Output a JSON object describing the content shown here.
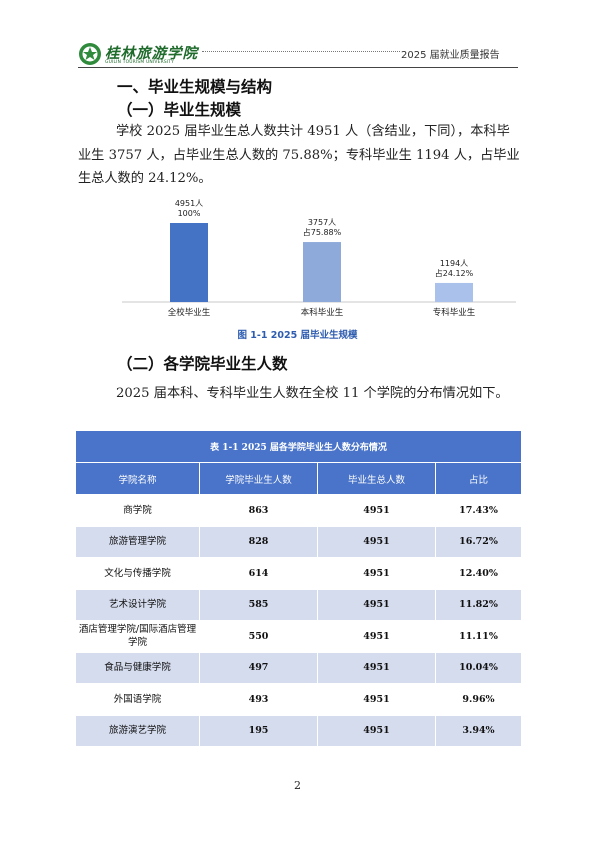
{
  "header": {
    "logo_cn": "桂林旅游学院",
    "logo_en": "GUILIN TOURISM UNIVERSITY",
    "doc_title": "2025 届就业质量报告"
  },
  "section1": {
    "heading": "一、毕业生规模与结构",
    "sub1": "（一）毕业生规模",
    "para1": "学校 2025 届毕业生总人数共计 4951 人（含结业，下同），本科毕业生 3757 人，占毕业生总人数的 75.88%；专科毕业生 1194 人，占毕业生总人数的 24.12%。"
  },
  "chart_data": {
    "type": "bar",
    "categories": [
      "全校毕业生",
      "本科毕业生",
      "专科毕业生"
    ],
    "values": [
      4951,
      3757,
      1194
    ],
    "data_labels": [
      [
        "4951人",
        "100%"
      ],
      [
        "3757人",
        "占75.88%"
      ],
      [
        "1194人",
        "占24.12%"
      ]
    ],
    "colors": [
      "#4472c4",
      "#8eaadb",
      "#a9c1eb"
    ],
    "ylim": [
      0,
      4951
    ],
    "grid": false
  },
  "chart_caption": "图 1-1     2025 届毕业生规模",
  "section2": {
    "sub2": "（二）各学院毕业生人数",
    "para2": "2025 届本科、专科毕业生人数在全校 11 个学院的分布情况如下。"
  },
  "table": {
    "caption": "表 1-1     2025 届各学院毕业生人数分布情况",
    "columns": [
      "学院名称",
      "学院毕业生人数",
      "毕业生总人数",
      "占比"
    ],
    "rows": [
      [
        "商学院",
        "863",
        "4951",
        "17.43%"
      ],
      [
        "旅游管理学院",
        "828",
        "4951",
        "16.72%"
      ],
      [
        "文化与传播学院",
        "614",
        "4951",
        "12.40%"
      ],
      [
        "艺术设计学院",
        "585",
        "4951",
        "11.82%"
      ],
      [
        "酒店管理学院/国际酒店管理学院",
        "550",
        "4951",
        "11.11%"
      ],
      [
        "食品与健康学院",
        "497",
        "4951",
        "10.04%"
      ],
      [
        "外国语学院",
        "493",
        "4951",
        "9.96%"
      ],
      [
        "旅游演艺学院",
        "195",
        "4951",
        "3.94%"
      ]
    ],
    "colors": {
      "header": "#4a74c9",
      "stripe": "#d5dcee"
    }
  },
  "page_number": "2"
}
